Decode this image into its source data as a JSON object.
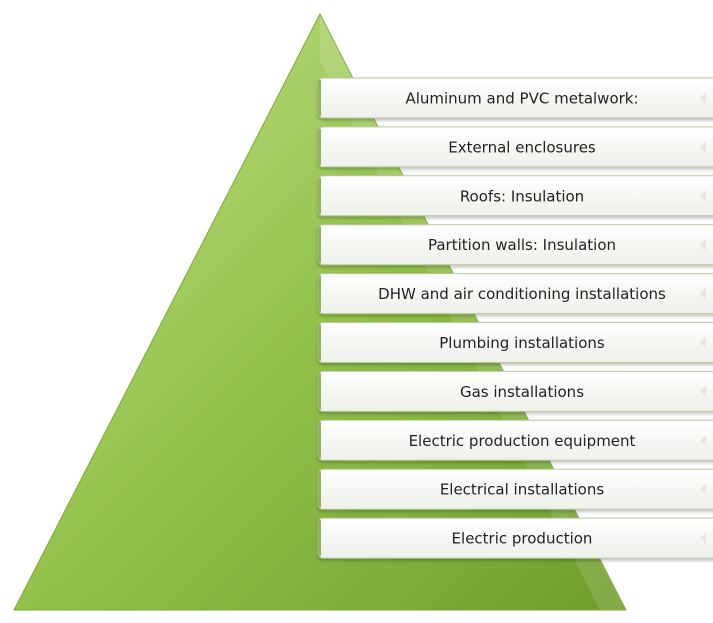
{
  "items": [
    "Aluminum and PVC metalwork:",
    "External enclosures",
    "Roofs: Insulation",
    "Partition walls: Insulation",
    "DHW and air conditioning installations",
    "Plumbing installations",
    "Gas installations",
    "Electric production equipment",
    "Electrical installations",
    "Electric production"
  ]
}
